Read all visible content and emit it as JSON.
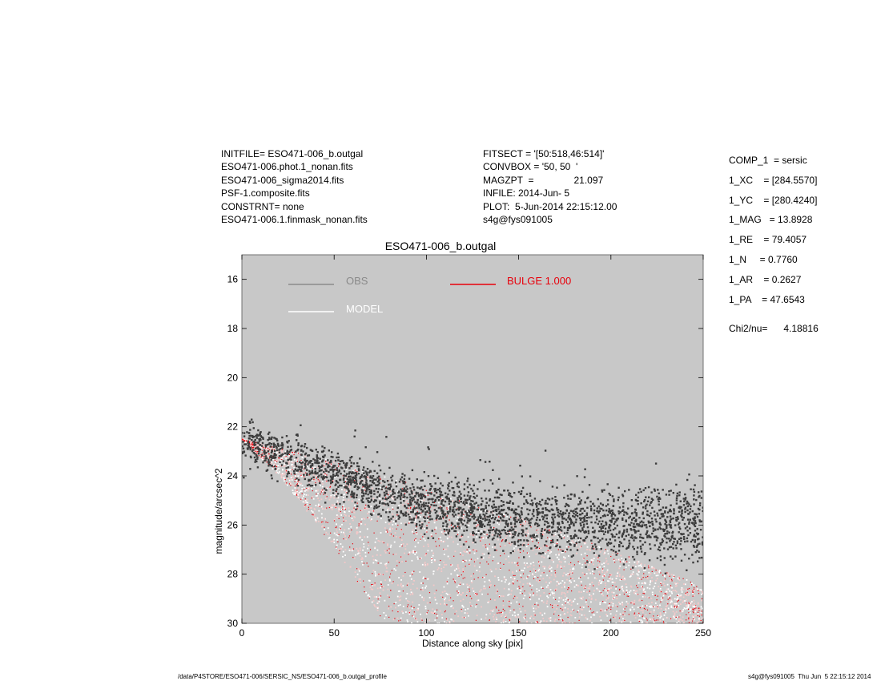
{
  "header_left": [
    "INITFILE= ESO471-006_b.outgal",
    "ESO471-006.phot.1_nonan.fits",
    "ESO471-006_sigma2014.fits",
    "PSF-1.composite.fits",
    "CONSTRNT= none",
    "ESO471-006.1.finmask_nonan.fits"
  ],
  "header_mid": [
    "FITSECT = '[50:518,46:514]'",
    "CONVBOX = '50, 50  '",
    "MAGZPT  =               21.097",
    "INFILE: 2014-Jun- 5",
    "PLOT:  5-Jun-2014 22:15:12.00",
    "s4g@fys091005"
  ],
  "components": [
    "COMP_1  = sersic",
    "1_XC    = [284.5570]",
    "1_YC    = [280.4240]",
    "1_MAG   = 13.8928",
    "1_RE    = 79.4057",
    "1_N     = 0.7760",
    "1_AR    = 0.2627",
    "1_PA    = 47.6543"
  ],
  "chi2": "Chi2/nu=      4.18816",
  "footer_left": "/data/P4STORE/ESO471-006/SERSIC_NS/ESO471-006_b.outgal_profile",
  "footer_right": "s4g@fys091005  Thu Jun  5 22:15:12 2014",
  "colors": {
    "plot_background": "#c8c8c8",
    "obs": "#3c3c3c",
    "obs_legend": "#8a8a8a",
    "model": "#ffffff",
    "bulge": "#e8000b"
  },
  "chart_data": {
    "type": "scatter",
    "title": "ESO471-006_b.outgal",
    "xlabel": "Distance along sky [pix]",
    "ylabel": "magnitude/arcsec^2",
    "xlim": [
      0,
      250
    ],
    "ylim": [
      30,
      15
    ],
    "y_inverted": true,
    "xticks": [
      "0",
      "50",
      "100",
      "150",
      "200",
      "250"
    ],
    "yticks": [
      "16",
      "18",
      "20",
      "22",
      "24",
      "26",
      "28",
      "30"
    ],
    "legend": [
      {
        "label": "OBS",
        "color": "#8a8a8a"
      },
      {
        "label": "MODEL",
        "color": "#ffffff"
      },
      {
        "label": "BULGE  1.000",
        "color": "#e8000b"
      }
    ],
    "series": [
      {
        "name": "OBS",
        "x": [
          0,
          5,
          10,
          15,
          20,
          25,
          30,
          40,
          50,
          60,
          70,
          80,
          100,
          120,
          140,
          160,
          180,
          200,
          220,
          240,
          250
        ],
        "y": [
          22.5,
          22.7,
          22.9,
          23.0,
          23.1,
          23.2,
          23.3,
          23.6,
          23.9,
          24.2,
          24.5,
          24.8,
          25.2,
          25.5,
          25.7,
          25.8,
          25.9,
          26.0,
          26.0,
          26.0,
          26.0
        ]
      },
      {
        "name": "MODEL",
        "x": [
          0,
          10,
          20,
          30,
          40,
          50,
          60,
          70,
          80,
          100,
          120,
          140,
          160,
          180,
          200,
          220,
          240,
          250
        ],
        "y": [
          22.5,
          22.9,
          23.3,
          23.7,
          24.1,
          24.6,
          25.1,
          25.6,
          26.1,
          26.6,
          27.0,
          27.4,
          27.7,
          28.0,
          28.3,
          28.6,
          28.9,
          29.0
        ]
      },
      {
        "name": "BULGE",
        "upper_envelope": {
          "x": [
            0,
            50,
            100,
            150,
            200,
            250
          ],
          "y": [
            22.5,
            23.4,
            24.5,
            25.7,
            27.0,
            28.5
          ]
        },
        "lower_envelope": {
          "x": [
            0,
            20,
            40,
            60,
            75,
            80
          ],
          "y": [
            22.5,
            24.0,
            25.9,
            28.0,
            29.8,
            30.0
          ]
        }
      }
    ]
  }
}
